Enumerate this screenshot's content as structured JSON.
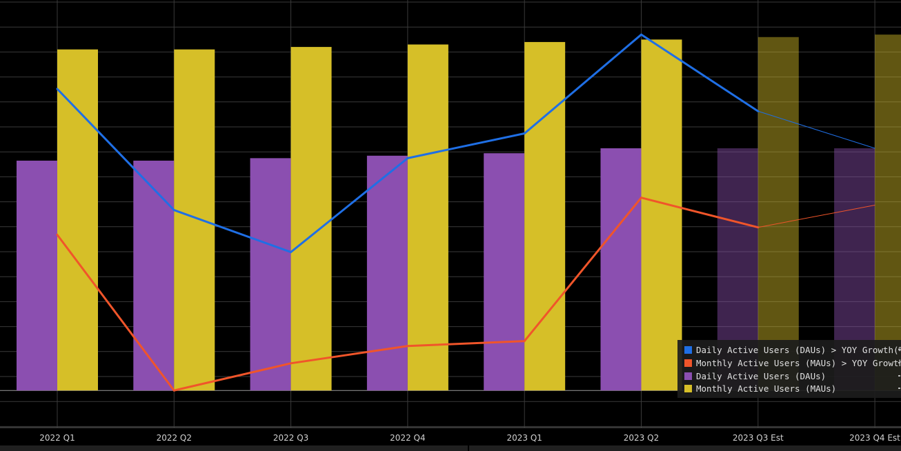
{
  "chart_data": {
    "type": "bar",
    "categories": [
      "2022 Q1",
      "2022 Q2",
      "2022 Q3",
      "2022 Q4",
      "2023 Q1",
      "2023 Q2",
      "2023 Q3 Est",
      "2023 Q4 Est"
    ],
    "estimated_categories": [
      "2023 Q3 Est",
      "2023 Q4 Est"
    ],
    "series": [
      {
        "name": "Daily Active Users (DAUs) > YOY Growth(%)",
        "kind": "line",
        "color": "#1f6fe5",
        "values": [
          12.2,
          7.3,
          5.6,
          9.4,
          10.4,
          14.4,
          11.3,
          9.8
        ]
      },
      {
        "name": "Monthly Active Users (MAUs) > YOY Growth(%)",
        "kind": "line",
        "color": "#f0552a",
        "values": [
          6.3,
          0.0,
          1.1,
          1.8,
          2.0,
          7.8,
          6.6,
          7.5
        ]
      },
      {
        "name": "Daily Active Users (DAUs)",
        "kind": "bar",
        "color": "#8b4fb0",
        "values": [
          9.3,
          9.3,
          9.4,
          9.5,
          9.6,
          9.8,
          9.8,
          9.8
        ]
      },
      {
        "name": "Monthly Active Users (MAUs)",
        "kind": "bar",
        "color": "#d6bf28",
        "values": [
          13.8,
          13.8,
          13.9,
          14.0,
          14.1,
          14.2,
          14.3,
          14.4
        ]
      }
    ],
    "ylim": [
      -1.5,
      15.8
    ],
    "grid": true,
    "legend": "bottom-right",
    "estimate_style": "dimmed"
  }
}
